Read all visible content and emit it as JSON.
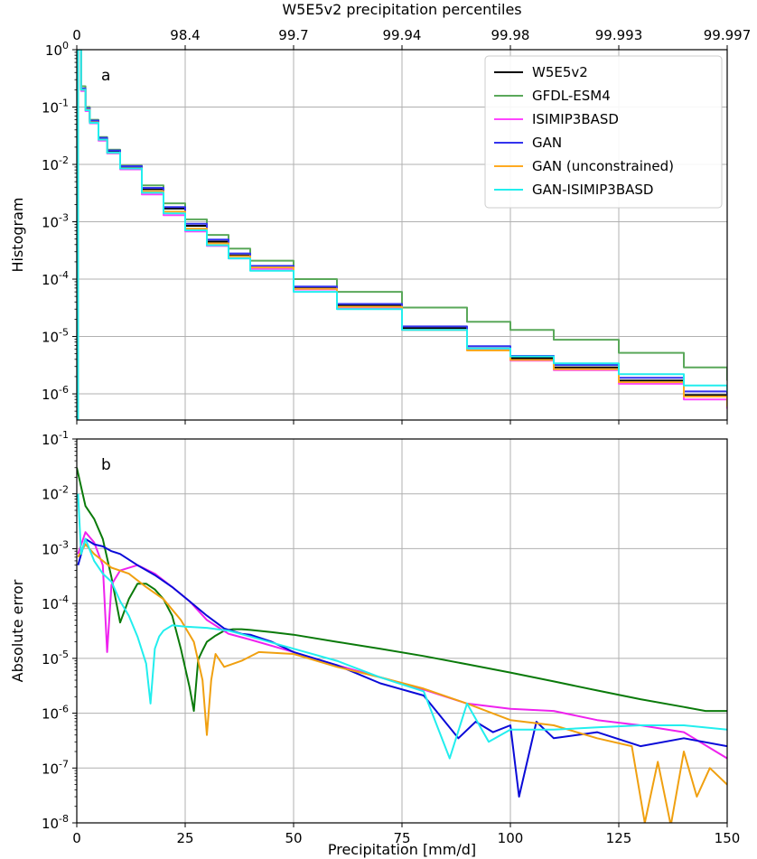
{
  "chart_data": [
    {
      "type": "line",
      "panel_letter": "a",
      "title": "",
      "top_xlabel": "W5E5v2 precipitation percentiles",
      "top_x_ticks": [
        {
          "x": 0,
          "label": "0"
        },
        {
          "x": 25,
          "label": "98.4"
        },
        {
          "x": 50,
          "label": "99.7"
        },
        {
          "x": 75,
          "label": "99.94"
        },
        {
          "x": 100,
          "label": "99.98"
        },
        {
          "x": 125,
          "label": "99.993"
        },
        {
          "x": 150,
          "label": "99.997"
        }
      ],
      "xlabel": "",
      "ylabel": "Histogram",
      "yscale": "log",
      "xlim": [
        0,
        150
      ],
      "ylim": [
        3.5e-07,
        1
      ],
      "grid": true,
      "legend_position": "top-right",
      "series": [
        {
          "name": "W5E5v2",
          "color": "#000000",
          "step": true,
          "x": [
            0.3,
            1,
            2,
            3,
            5,
            7,
            10,
            15,
            20,
            25,
            30,
            35,
            40,
            50,
            60,
            75,
            90,
            100,
            110,
            125,
            140,
            150
          ],
          "y": [
            1,
            0.2,
            0.09,
            0.055,
            0.028,
            0.017,
            0.009,
            0.0037,
            0.0017,
            0.00085,
            0.00045,
            0.00026,
            0.00016,
            7e-05,
            3.5e-05,
            1.4e-05,
            6.2e-06,
            4.2e-06,
            2.9e-06,
            1.7e-06,
            9.5e-07,
            6.5e-07
          ]
        },
        {
          "name": "GFDL-ESM4",
          "color": "#5aa85a",
          "step": true,
          "x": [
            0.3,
            1,
            2,
            3,
            5,
            7,
            10,
            15,
            20,
            25,
            30,
            35,
            40,
            50,
            60,
            75,
            90,
            100,
            110,
            125,
            140,
            150
          ],
          "y": [
            1,
            0.23,
            0.1,
            0.06,
            0.03,
            0.018,
            0.0095,
            0.0043,
            0.0021,
            0.0011,
            0.00059,
            0.00034,
            0.00021,
            0.0001,
            6e-05,
            3.2e-05,
            1.8e-05,
            1.3e-05,
            8.8e-06,
            5.2e-06,
            2.9e-06,
            1.7e-06
          ]
        },
        {
          "name": "ISIMIP3BASD",
          "color": "#ff44ff",
          "step": true,
          "x": [
            0.3,
            1,
            2,
            3,
            5,
            7,
            10,
            15,
            20,
            25,
            30,
            35,
            40,
            50,
            60,
            75,
            90,
            100,
            110,
            125,
            140,
            150
          ],
          "y": [
            1,
            0.19,
            0.085,
            0.052,
            0.026,
            0.0155,
            0.0082,
            0.003,
            0.0013,
            0.00068,
            0.00038,
            0.00023,
            0.00015,
            6.6e-05,
            3.2e-05,
            1.3e-05,
            5.8e-06,
            3.8e-06,
            2.6e-06,
            1.5e-06,
            8e-07,
            5.5e-07
          ]
        },
        {
          "name": "GAN",
          "color": "#3333ee",
          "step": true,
          "x": [
            0.3,
            1,
            2,
            3,
            5,
            7,
            10,
            15,
            20,
            25,
            30,
            35,
            40,
            50,
            60,
            75,
            90,
            100,
            110,
            125,
            140,
            150
          ],
          "y": [
            1,
            0.21,
            0.095,
            0.058,
            0.029,
            0.0175,
            0.0093,
            0.0039,
            0.0018,
            0.00092,
            0.00049,
            0.00028,
            0.00017,
            7.4e-05,
            3.7e-05,
            1.5e-05,
            6.8e-06,
            4.6e-06,
            3.2e-06,
            1.9e-06,
            1.1e-06,
            7.8e-07
          ]
        },
        {
          "name": "GAN (unconstrained)",
          "color": "#ffaa22",
          "step": true,
          "x": [
            0.3,
            1,
            2,
            3,
            5,
            7,
            10,
            15,
            20,
            25,
            30,
            35,
            40,
            50,
            60,
            75,
            90,
            100,
            110,
            125,
            140,
            150
          ],
          "y": [
            1,
            0.2,
            0.09,
            0.054,
            0.027,
            0.016,
            0.0086,
            0.0034,
            0.0015,
            0.00076,
            0.00042,
            0.00025,
            0.00016,
            6.8e-05,
            3.3e-05,
            1.3e-05,
            5.7e-06,
            3.9e-06,
            2.7e-06,
            1.6e-06,
            9e-07,
            6e-07
          ]
        },
        {
          "name": "GAN-ISIMIP3BASD",
          "color": "#22eeee",
          "step": true,
          "x": [
            0.3,
            1,
            2,
            3,
            5,
            7,
            10,
            15,
            20,
            25,
            30,
            35,
            40,
            50,
            60,
            75,
            90,
            100,
            110,
            125,
            140,
            150
          ],
          "y": [
            1,
            0.2,
            0.088,
            0.053,
            0.027,
            0.016,
            0.0085,
            0.0032,
            0.0014,
            0.00071,
            0.00039,
            0.00023,
            0.00014,
            6e-05,
            3e-05,
            1.3e-05,
            6.2e-06,
            4.5e-06,
            3.4e-06,
            2.2e-06,
            1.4e-06,
            1.1e-06
          ]
        }
      ]
    },
    {
      "type": "line",
      "panel_letter": "b",
      "title": "",
      "xlabel": "Precipitation [mm/d]",
      "ylabel": "Absolute error",
      "yscale": "log",
      "xlim": [
        0,
        150
      ],
      "ylim": [
        1e-08,
        0.1
      ],
      "x_ticks": [
        0,
        25,
        50,
        75,
        100,
        125,
        150
      ],
      "grid": true,
      "legend_position": "none",
      "series": [
        {
          "name": "GFDL-ESM4",
          "color": "#0a7a0a",
          "x": [
            0,
            2,
            4,
            6,
            8,
            10,
            12,
            14,
            16,
            18,
            20,
            22,
            24,
            26,
            27,
            28,
            29,
            30,
            32,
            34,
            36,
            38,
            40,
            45,
            50,
            60,
            70,
            80,
            90,
            100,
            110,
            120,
            130,
            140,
            145,
            150
          ],
          "y": [
            0.03,
            0.006,
            0.0035,
            0.0015,
            0.0003,
            4.5e-05,
            0.00012,
            0.00023,
            0.00023,
            0.00018,
            0.00012,
            6e-05,
            1.5e-05,
            3e-06,
            1.1e-06,
            9.5e-06,
            1.4e-05,
            2e-05,
            2.6e-05,
            3.2e-05,
            3.4e-05,
            3.4e-05,
            3.3e-05,
            3e-05,
            2.7e-05,
            2e-05,
            1.5e-05,
            1.1e-05,
            7.8e-06,
            5.5e-06,
            3.8e-06,
            2.6e-06,
            1.8e-06,
            1.3e-06,
            1.1e-06,
            1.1e-06
          ]
        },
        {
          "name": "ISIMIP3BASD",
          "color": "#ee22ee",
          "x": [
            0.3,
            2,
            4,
            6,
            7,
            8,
            10,
            14,
            18,
            22,
            26,
            30,
            35,
            40,
            50,
            60,
            70,
            80,
            90,
            100,
            110,
            120,
            130,
            140,
            150
          ],
          "y": [
            0.0008,
            0.002,
            0.0013,
            0.0005,
            1.3e-05,
            0.00022,
            0.0004,
            0.0005,
            0.00035,
            0.0002,
            0.00011,
            5e-05,
            2.8e-05,
            2.2e-05,
            1.3e-05,
            7.5e-06,
            4.5e-06,
            2.7e-06,
            1.5e-06,
            1.2e-06,
            1.1e-06,
            7.5e-07,
            6e-07,
            4.5e-07,
            1.5e-07
          ]
        },
        {
          "name": "GAN",
          "color": "#0a0ad8",
          "x": [
            0.3,
            2,
            4,
            6,
            8,
            10,
            14,
            18,
            22,
            26,
            30,
            34,
            38,
            40,
            45,
            50,
            60,
            70,
            80,
            88,
            92,
            96,
            100,
            102,
            106,
            110,
            120,
            130,
            140,
            150
          ],
          "y": [
            0.0005,
            0.0015,
            0.0012,
            0.0011,
            0.0009,
            0.0008,
            0.0005,
            0.00033,
            0.0002,
            0.00011,
            6e-05,
            3.5e-05,
            2.8e-05,
            2.7e-05,
            2e-05,
            1.3e-05,
            7.5e-06,
            3.5e-06,
            2.1e-06,
            3.5e-07,
            7e-07,
            4.5e-07,
            6e-07,
            3e-08,
            7e-07,
            3.5e-07,
            4.5e-07,
            2.5e-07,
            3.5e-07,
            2.5e-07
          ]
        },
        {
          "name": "GAN (unconstrained)",
          "color": "#f0a010",
          "x": [
            0.3,
            2,
            4,
            8,
            12,
            16,
            20,
            24,
            27,
            29,
            30,
            31,
            32,
            34,
            38,
            42,
            50,
            60,
            70,
            80,
            90,
            100,
            110,
            120,
            128,
            131,
            134,
            137,
            140,
            143,
            146,
            150
          ],
          "y": [
            0.0007,
            0.0012,
            0.0008,
            0.00045,
            0.00035,
            0.0002,
            0.00012,
            5e-05,
            2e-05,
            4e-06,
            4e-07,
            4e-06,
            1.2e-05,
            7e-06,
            9e-06,
            1.3e-05,
            1.2e-05,
            7e-06,
            4.5e-06,
            2.8e-06,
            1.5e-06,
            7.5e-07,
            6e-07,
            3.5e-07,
            2.5e-07,
            1e-08,
            1.3e-07,
            9e-09,
            2e-07,
            3e-08,
            1e-07,
            5e-08
          ]
        },
        {
          "name": "GAN-ISIMIP3BASD",
          "color": "#22eeee",
          "x": [
            0.3,
            1,
            2,
            4,
            6,
            8,
            10,
            12,
            14,
            16,
            17,
            18,
            19,
            20,
            22,
            25,
            30,
            35,
            40,
            50,
            60,
            70,
            80,
            86,
            90,
            95,
            100,
            110,
            120,
            130,
            140,
            150
          ],
          "y": [
            0.01,
            0.0008,
            0.0015,
            0.0006,
            0.00035,
            0.00025,
            0.00011,
            6e-05,
            2.5e-05,
            8e-06,
            1.5e-06,
            1.5e-05,
            2.5e-05,
            3.2e-05,
            4e-05,
            3.8e-05,
            3.6e-05,
            3.2e-05,
            2.5e-05,
            1.5e-05,
            9e-06,
            4.5e-06,
            2.5e-06,
            1.5e-07,
            1.5e-06,
            3e-07,
            5e-07,
            5e-07,
            5.5e-07,
            6e-07,
            6e-07,
            5e-07
          ]
        }
      ]
    }
  ]
}
